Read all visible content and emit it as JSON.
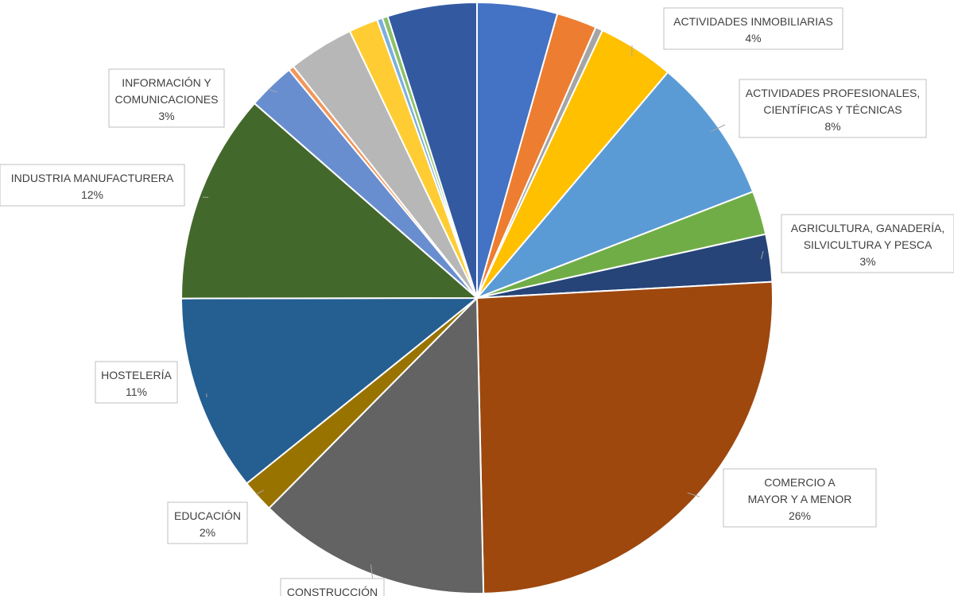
{
  "chart_data": {
    "type": "pie",
    "title": "",
    "slices": [
      {
        "label": "",
        "value": 4.4,
        "percent_label": "",
        "color": "#4472C4"
      },
      {
        "label": "",
        "value": 2.2,
        "percent_label": "",
        "color": "#ED7D31"
      },
      {
        "label": "",
        "value": 0.4,
        "percent_label": "",
        "color": "#A5A5A5"
      },
      {
        "label": "ACTIVIDADES INMOBILIARIAS",
        "value": 4.2,
        "percent_label": "4%",
        "color": "#FFC000"
      },
      {
        "label": "ACTIVIDADES PROFESIONALES, CIENTÍFICAS Y TÉCNICAS",
        "value": 8.0,
        "percent_label": "8%",
        "color": "#5B9BD5"
      },
      {
        "label": "",
        "value": 2.4,
        "percent_label": "",
        "color": "#70AD47"
      },
      {
        "label": "AGRICULTURA, GANADERÍA, SILVICULTURA Y PESCA",
        "value": 2.6,
        "percent_label": "3%",
        "color": "#264478"
      },
      {
        "label": "COMERCIO A MAYOR Y A MENOR",
        "value": 25.6,
        "percent_label": "26%",
        "color": "#9E480E"
      },
      {
        "label": "CONSTRUCCIÓN",
        "value": 12.8,
        "percent_label": "",
        "color": "#636363"
      },
      {
        "label": "EDUCACIÓN",
        "value": 1.8,
        "percent_label": "2%",
        "color": "#997300"
      },
      {
        "label": "HOSTELERÍA",
        "value": 10.8,
        "percent_label": "11%",
        "color": "#255E91"
      },
      {
        "label": "INDUSTRIA MANUFACTURERA",
        "value": 11.5,
        "percent_label": "12%",
        "color": "#43682B"
      },
      {
        "label": "INFORMACIÓN Y COMUNICACIONES",
        "value": 2.6,
        "percent_label": "3%",
        "color": "#698ED0"
      },
      {
        "label": "",
        "value": 0.3,
        "percent_label": "",
        "color": "#F1975A"
      },
      {
        "label": "",
        "value": 3.6,
        "percent_label": "",
        "color": "#B7B7B7"
      },
      {
        "label": "",
        "value": 1.6,
        "percent_label": "",
        "color": "#FFCD33"
      },
      {
        "label": "",
        "value": 0.3,
        "percent_label": "",
        "color": "#7CAFDD"
      },
      {
        "label": "",
        "value": 0.3,
        "percent_label": "",
        "color": "#8CC168"
      },
      {
        "label": "",
        "value": 4.9,
        "percent_label": "",
        "color": "#335AA1"
      }
    ],
    "legend": "none"
  }
}
